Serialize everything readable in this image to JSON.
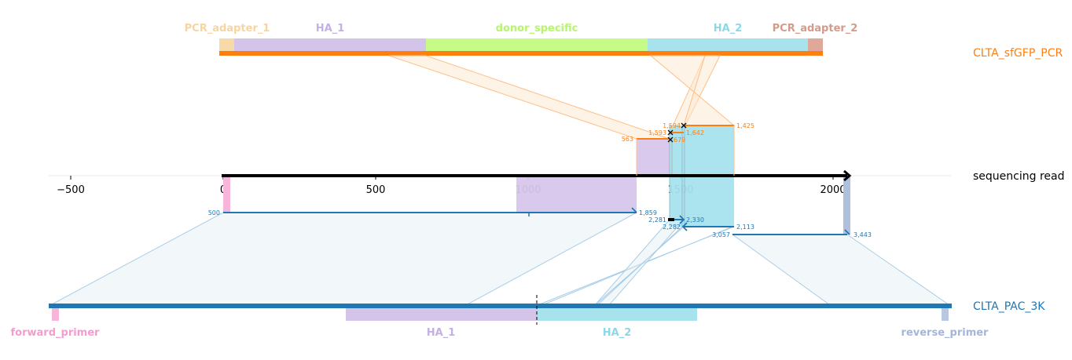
{
  "colors": {
    "top_ref": "#ff7f0e",
    "bottom_ref": "#1f77b4",
    "read": "#000000",
    "pcr_adapter": "#f8d9a8",
    "pcr_adapter_2": "#dfa898",
    "ha_1": "#d4c4ea",
    "ha_2": "#a8e2ec",
    "donor_specific": "#c6fb88",
    "forward_primer": "#f7b6d9",
    "reverse_primer": "#bac7e0",
    "block_ha_1": "#d6c6ec",
    "block_ha_2": "#a7e3ee",
    "block_forward": "#f7b6d9",
    "block_reverse": "#afc0df"
  },
  "top_reference": {
    "name": "CLTA_sfGFP_PCR",
    "features": [
      {
        "id": "pcr_adapter_1",
        "label": "PCR_adapter_1",
        "color_key": "pcr_adapter",
        "label_color": "#f8d49e"
      },
      {
        "id": "ha_1",
        "label": "HA_1",
        "color_key": "ha_1",
        "label_color": "#c3b0e4"
      },
      {
        "id": "donor_specific",
        "label": "donor_specific",
        "color_key": "donor_specific",
        "label_color": "#b6f56c"
      },
      {
        "id": "ha_2",
        "label": "HA_2",
        "color_key": "ha_2",
        "label_color": "#8ad8e8"
      },
      {
        "id": "pcr_adapter_2",
        "label": "PCR_adapter_2",
        "color_key": "pcr_adapter_2",
        "label_color": "#d69a88"
      }
    ]
  },
  "read": {
    "name": "sequencing read",
    "axis": {
      "min": -580,
      "max": 2380,
      "ticks": [
        -500,
        0,
        500,
        1000,
        1500,
        2000
      ],
      "tick_labels": [
        "−500",
        "0",
        "500",
        "1000",
        "1500",
        "2000"
      ],
      "read_start": 0,
      "read_end": 2050
    }
  },
  "bottom_reference": {
    "name": "CLTA_PAC_3K",
    "features": [
      {
        "id": "forward_primer",
        "label": "forward_primer",
        "color_key": "forward_primer",
        "label_color": "#f59ccf"
      },
      {
        "id": "ha_1",
        "label": "HA_1",
        "color_key": "ha_1",
        "label_color": "#c3b0e4"
      },
      {
        "id": "ha_2",
        "label": "HA_2",
        "color_key": "ha_2",
        "label_color": "#8ad8e8"
      },
      {
        "id": "reverse_primer",
        "label": "reverse_primer",
        "color_key": "reverse_primer",
        "label_color": "#a6b6d8"
      }
    ]
  },
  "alignments_top": [
    {
      "id": "top-aln-1",
      "ref_start_label": "563",
      "ref_end_label": "",
      "read_start": 1360,
      "read_end": 1475
    },
    {
      "id": "top-aln-2",
      "ref_start_label": "1,593",
      "ref_end_label": "1,642",
      "read_start": 1470,
      "read_end": 1510
    },
    {
      "id": "top-aln-3",
      "ref_start_label": "1,594",
      "ref_end_label": "679",
      "read_start": 1470,
      "read_end": 1510
    },
    {
      "id": "top-aln-4",
      "ref_start_label": "",
      "ref_end_label": "1,425",
      "read_start": 1510,
      "read_end": 1680
    }
  ],
  "alignments_bottom": [
    {
      "id": "bot-aln-1",
      "ref_start_label": "500",
      "ref_end_label": "1,859",
      "read_start": 0,
      "read_end": 1360
    },
    {
      "id": "bot-aln-2",
      "ref_start_label": "2,281",
      "ref_end_label": "2,330",
      "read_start": 1470,
      "read_end": 1510
    },
    {
      "id": "bot-aln-3",
      "ref_start_label": "2,282",
      "ref_end_label": "2,113",
      "read_start": 1510,
      "read_end": 1680
    },
    {
      "id": "bot-aln-4",
      "ref_start_label": "3,057",
      "ref_end_label": "3,443",
      "read_start": 1680,
      "read_end": 2050
    }
  ]
}
